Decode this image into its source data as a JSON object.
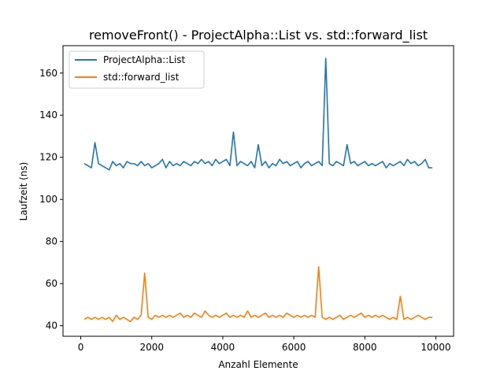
{
  "chart_data": {
    "type": "line",
    "title": "removeFront() - ProjectAlpha::List vs. std::forward_list",
    "xlabel": "Anzahl Elemente",
    "ylabel": "Laufzeit (ns)",
    "xlim": [
      -500,
      10500
    ],
    "ylim": [
      35,
      173
    ],
    "xticks": [
      0,
      2000,
      4000,
      6000,
      8000,
      10000
    ],
    "yticks": [
      40,
      60,
      80,
      100,
      120,
      140,
      160
    ],
    "grid": false,
    "legend_position": "upper-left",
    "x": [
      100,
      200,
      300,
      400,
      500,
      600,
      700,
      800,
      900,
      1000,
      1100,
      1200,
      1300,
      1400,
      1500,
      1600,
      1700,
      1800,
      1900,
      2000,
      2100,
      2200,
      2300,
      2400,
      2500,
      2600,
      2700,
      2800,
      2900,
      3000,
      3100,
      3200,
      3300,
      3400,
      3500,
      3600,
      3700,
      3800,
      3900,
      4000,
      4100,
      4200,
      4300,
      4400,
      4500,
      4600,
      4700,
      4800,
      4900,
      5000,
      5100,
      5200,
      5300,
      5400,
      5500,
      5600,
      5700,
      5800,
      5900,
      6000,
      6100,
      6200,
      6300,
      6400,
      6500,
      6600,
      6700,
      6800,
      6900,
      7000,
      7100,
      7200,
      7300,
      7400,
      7500,
      7600,
      7700,
      7800,
      7900,
      8000,
      8100,
      8200,
      8300,
      8400,
      8500,
      8600,
      8700,
      8800,
      8900,
      9000,
      9100,
      9200,
      9300,
      9400,
      9500,
      9600,
      9700,
      9800,
      9900
    ],
    "series": [
      {
        "name": "ProjectAlpha::List",
        "color": "#1f77b4",
        "values": [
          117,
          116,
          115,
          127,
          117,
          116,
          115,
          114,
          118,
          116,
          117,
          115,
          118,
          117,
          117,
          116,
          118,
          116,
          117,
          115,
          116,
          117,
          119,
          115,
          118,
          116,
          117,
          116,
          118,
          117,
          116,
          118,
          117,
          119,
          117,
          118,
          116,
          119,
          117,
          118,
          119,
          116,
          132,
          116,
          118,
          117,
          116,
          118,
          115,
          126,
          116,
          118,
          115,
          117,
          116,
          119,
          117,
          118,
          116,
          117,
          118,
          115,
          117,
          118,
          116,
          117,
          118,
          116,
          167,
          117,
          116,
          118,
          117,
          116,
          126,
          117,
          118,
          116,
          117,
          118,
          116,
          117,
          116,
          117,
          118,
          115,
          117,
          116,
          117,
          118,
          116,
          119,
          117,
          118,
          116,
          117,
          119,
          115,
          115
        ]
      },
      {
        "name": "std::forward_list",
        "color": "#ff7f0e",
        "values": [
          43,
          44,
          43,
          44,
          43,
          44,
          43,
          44,
          42,
          45,
          43,
          44,
          43,
          42,
          44,
          43,
          45,
          65,
          44,
          43,
          45,
          44,
          45,
          44,
          45,
          44,
          45,
          46,
          44,
          45,
          44,
          46,
          45,
          44,
          47,
          45,
          44,
          45,
          44,
          45,
          46,
          44,
          45,
          44,
          45,
          44,
          47,
          44,
          45,
          44,
          45,
          46,
          44,
          45,
          44,
          45,
          44,
          46,
          45,
          44,
          45,
          44,
          45,
          44,
          45,
          44,
          68,
          44,
          43,
          44,
          43,
          44,
          45,
          43,
          44,
          45,
          44,
          45,
          46,
          44,
          45,
          44,
          45,
          44,
          45,
          44,
          43,
          44,
          43,
          54,
          43,
          44,
          43,
          44,
          45,
          44,
          43,
          44,
          44
        ]
      }
    ]
  }
}
